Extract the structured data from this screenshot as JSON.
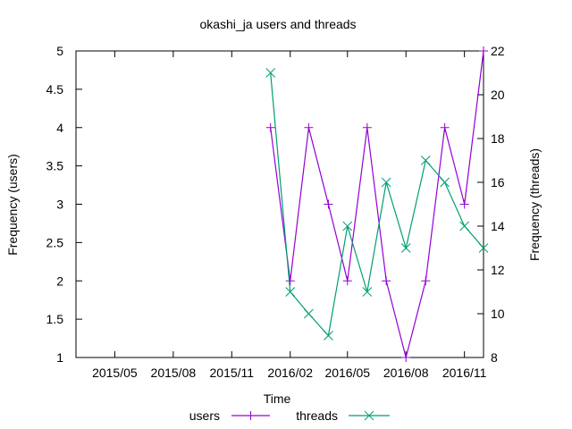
{
  "chart_data": {
    "type": "line",
    "title": "okashi_ja users and threads",
    "xlabel": "Time",
    "ylabel": "Frequency (users)",
    "y2label": "Frequency (threads)",
    "xlim": [
      "2015-03-01",
      "2016-12-01"
    ],
    "ylim": [
      1,
      5
    ],
    "y2lim": [
      8,
      22
    ],
    "x_ticks": [
      "2015/05",
      "2015/08",
      "2015/11",
      "2016/02",
      "2016/05",
      "2016/08",
      "2016/11"
    ],
    "y_ticks": [
      "1",
      "1.5",
      "2",
      "2.5",
      "3",
      "3.5",
      "4",
      "4.5",
      "5"
    ],
    "y2_ticks": [
      "8",
      "10",
      "12",
      "14",
      "16",
      "18",
      "20",
      "22"
    ],
    "legend_position": "bottom",
    "grid": false,
    "series": [
      {
        "name": "users",
        "axis": "left",
        "color": "#9400d3",
        "marker": "plus",
        "x": [
          "2016-01-01",
          "2016-02-01",
          "2016-03-01",
          "2016-04-01",
          "2016-05-01",
          "2016-06-01",
          "2016-07-01",
          "2016-08-01",
          "2016-09-01",
          "2016-10-01",
          "2016-11-01",
          "2016-12-01"
        ],
        "y": [
          4,
          2,
          4,
          3,
          2,
          4,
          2,
          1,
          2,
          4,
          3,
          5
        ]
      },
      {
        "name": "threads",
        "axis": "right",
        "color": "#009e73",
        "marker": "cross",
        "x": [
          "2016-01-01",
          "2016-02-01",
          "2016-03-01",
          "2016-04-01",
          "2016-05-01",
          "2016-06-01",
          "2016-07-01",
          "2016-08-01",
          "2016-09-01",
          "2016-10-01",
          "2016-11-01",
          "2016-12-01"
        ],
        "y": [
          21,
          11,
          10,
          9,
          14,
          11,
          16,
          13,
          17,
          16,
          14,
          13
        ]
      }
    ]
  }
}
